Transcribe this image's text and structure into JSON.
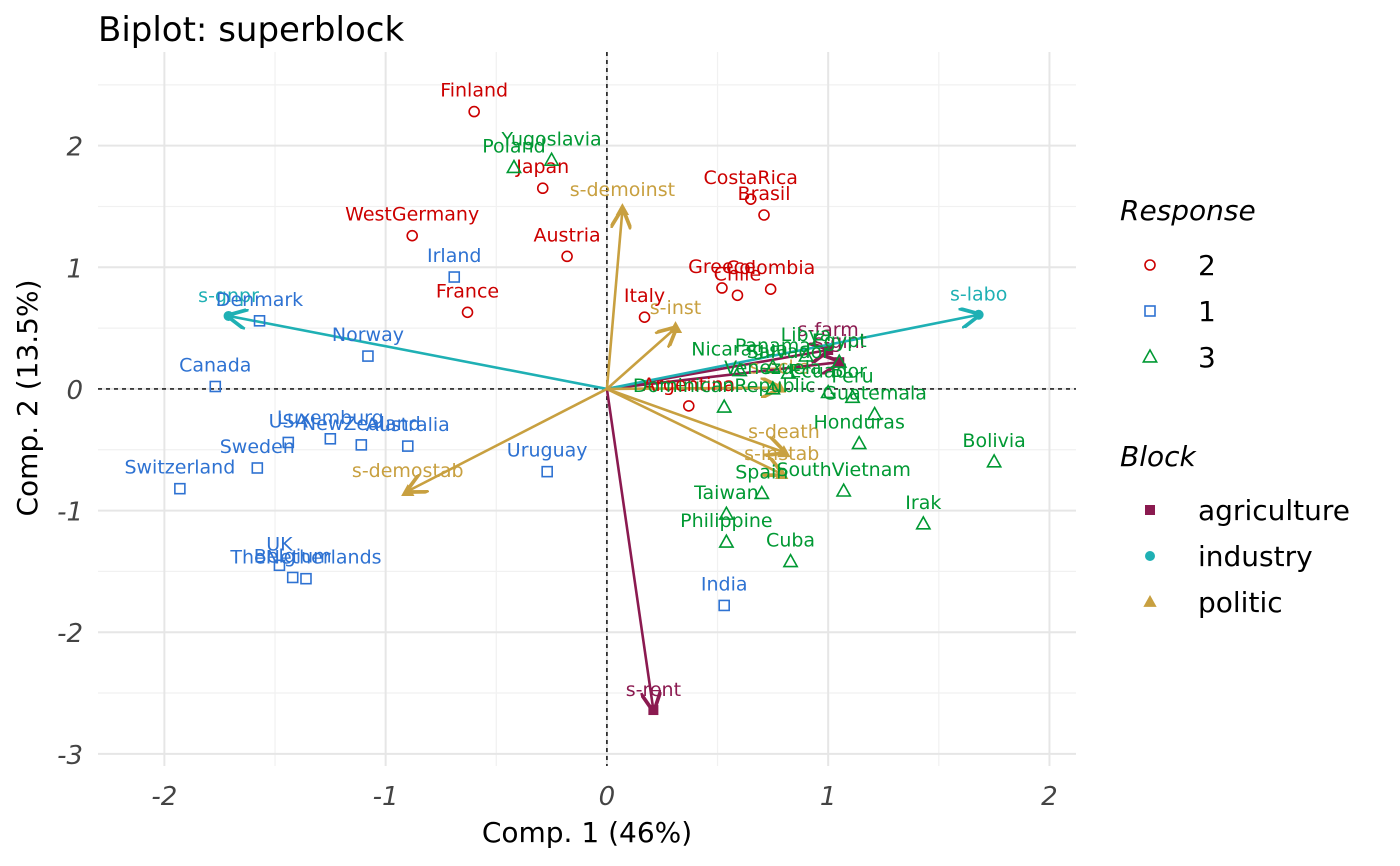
{
  "chart_data": {
    "type": "scatter",
    "title": "Biplot: superblock",
    "xlabel": "Comp. 1 (46%)",
    "ylabel": "Comp. 2 (13.5%)",
    "xlim": [
      -2.3,
      2.12
    ],
    "ylim": [
      -3.1,
      2.77
    ],
    "xticks": [
      -2,
      -1,
      0,
      1,
      2
    ],
    "xtick_labels": [
      "-2",
      "-1",
      "0",
      "1",
      "2"
    ],
    "yticks": [
      -3,
      -2,
      -1,
      0,
      1,
      2
    ],
    "ytick_labels": [
      "-3",
      "-2",
      "-1",
      "0",
      "1",
      "2"
    ],
    "grid": true,
    "reference_lines": {
      "x": 0,
      "y": 0,
      "style": "dashed"
    },
    "colors": {
      "response_2": "#cc0000",
      "response_1": "#2e72d2",
      "response_3": "#009933",
      "agriculture": "#8b1a50",
      "industry": "#1fb0b4",
      "politic": "#c8a040"
    },
    "legend_response": {
      "title": "Response",
      "items": [
        {
          "label": "2",
          "shape": "circle",
          "color": "#cc0000"
        },
        {
          "label": "1",
          "shape": "square",
          "color": "#2e72d2"
        },
        {
          "label": "3",
          "shape": "triangle",
          "color": "#009933"
        }
      ]
    },
    "legend_block": {
      "title": "Block",
      "items": [
        {
          "label": "agriculture",
          "shape": "filled-square",
          "color": "#8b1a50"
        },
        {
          "label": "industry",
          "shape": "filled-circle",
          "color": "#1fb0b4"
        },
        {
          "label": "politic",
          "shape": "filled-triangle",
          "color": "#c8a040"
        }
      ]
    },
    "legend_placement": "right",
    "points": [
      {
        "label": "Finland",
        "x": -0.6,
        "y": 2.28,
        "group": "2"
      },
      {
        "label": "Japan",
        "x": -0.29,
        "y": 1.65,
        "group": "2"
      },
      {
        "label": "WestGermany",
        "x": -0.88,
        "y": 1.26,
        "group": "2"
      },
      {
        "label": "Austria",
        "x": -0.18,
        "y": 1.09,
        "group": "2"
      },
      {
        "label": "France",
        "x": -0.63,
        "y": 0.63,
        "group": "2"
      },
      {
        "label": "Italy",
        "x": 0.17,
        "y": 0.59,
        "group": "2"
      },
      {
        "label": "CostaRica",
        "x": 0.65,
        "y": 1.56,
        "group": "2"
      },
      {
        "label": "Brasil",
        "x": 0.71,
        "y": 1.43,
        "group": "2"
      },
      {
        "label": "Greece",
        "x": 0.52,
        "y": 0.83,
        "group": "2"
      },
      {
        "label": "Colombia",
        "x": 0.74,
        "y": 0.82,
        "group": "2"
      },
      {
        "label": "Chile",
        "x": 0.59,
        "y": 0.77,
        "group": "2"
      },
      {
        "label": "Argentina",
        "x": 0.37,
        "y": -0.14,
        "group": "2"
      },
      {
        "label": "Irland",
        "x": -0.69,
        "y": 0.92,
        "group": "1"
      },
      {
        "label": "Denmark",
        "x": -1.57,
        "y": 0.56,
        "group": "1"
      },
      {
        "label": "Norway",
        "x": -1.08,
        "y": 0.27,
        "group": "1"
      },
      {
        "label": "Canada",
        "x": -1.77,
        "y": 0.02,
        "group": "1"
      },
      {
        "label": "Luxemburg",
        "x": -1.25,
        "y": -0.41,
        "group": "1"
      },
      {
        "label": "USA",
        "x": -1.44,
        "y": -0.44,
        "group": "1"
      },
      {
        "label": "NewZealand",
        "x": -1.11,
        "y": -0.46,
        "group": "1"
      },
      {
        "label": "Australia",
        "x": -0.9,
        "y": -0.47,
        "group": "1"
      },
      {
        "label": "Sweden",
        "x": -1.58,
        "y": -0.65,
        "group": "1"
      },
      {
        "label": "Switzerland",
        "x": -1.93,
        "y": -0.82,
        "group": "1"
      },
      {
        "label": "Uruguay",
        "x": -0.27,
        "y": -0.68,
        "group": "1"
      },
      {
        "label": "UK",
        "x": -1.48,
        "y": -1.45,
        "group": "1"
      },
      {
        "label": "Belgium",
        "x": -1.42,
        "y": -1.55,
        "group": "1"
      },
      {
        "label": "TheNetherlands",
        "x": -1.36,
        "y": -1.56,
        "group": "1"
      },
      {
        "label": "India",
        "x": 0.53,
        "y": -1.78,
        "group": "1"
      },
      {
        "label": "Yugoslavia",
        "x": -0.25,
        "y": 1.88,
        "group": "3"
      },
      {
        "label": "Poland",
        "x": -0.42,
        "y": 1.82,
        "group": "3"
      },
      {
        "label": "Nicaragua",
        "x": 0.6,
        "y": 0.15,
        "group": "3"
      },
      {
        "label": "Panama",
        "x": 0.75,
        "y": 0.18,
        "group": "3"
      },
      {
        "label": "Salvador",
        "x": 0.82,
        "y": 0.13,
        "group": "3"
      },
      {
        "label": "Libya",
        "x": 0.9,
        "y": 0.27,
        "group": "3"
      },
      {
        "label": "Egypt",
        "x": 1.05,
        "y": 0.22,
        "group": "3"
      },
      {
        "label": "Venezuela",
        "x": 0.75,
        "y": 0.0,
        "group": "3"
      },
      {
        "label": "Ecuador",
        "x": 1.0,
        "y": -0.03,
        "group": "3"
      },
      {
        "label": "Peru",
        "x": 1.11,
        "y": -0.07,
        "group": "3"
      },
      {
        "label": "Guatemala",
        "x": 1.21,
        "y": -0.21,
        "group": "3"
      },
      {
        "label": "Honduras",
        "x": 1.14,
        "y": -0.45,
        "group": "3"
      },
      {
        "label": "DominicanRepublic",
        "x": 0.53,
        "y": -0.15,
        "group": "3"
      },
      {
        "label": "Bolivia",
        "x": 1.75,
        "y": -0.6,
        "group": "3"
      },
      {
        "label": "SouthVietnam",
        "x": 1.07,
        "y": -0.84,
        "group": "3"
      },
      {
        "label": "Spain",
        "x": 0.7,
        "y": -0.86,
        "group": "3"
      },
      {
        "label": "Irak",
        "x": 1.43,
        "y": -1.11,
        "group": "3"
      },
      {
        "label": "Taiwan",
        "x": 0.54,
        "y": -1.03,
        "group": "3"
      },
      {
        "label": "Philippine",
        "x": 0.54,
        "y": -1.26,
        "group": "3"
      },
      {
        "label": "Cuba",
        "x": 0.83,
        "y": -1.42,
        "group": "3"
      }
    ],
    "variables": [
      {
        "label": "s-gini",
        "x": 1.05,
        "y": 0.22,
        "block": "agriculture"
      },
      {
        "label": "s-farm",
        "x": 1.0,
        "y": 0.32,
        "block": "agriculture"
      },
      {
        "label": "s-rent",
        "x": 0.21,
        "y": -2.64,
        "block": "agriculture"
      },
      {
        "label": "s-gnpr",
        "x": -1.71,
        "y": 0.6,
        "block": "industry"
      },
      {
        "label": "s-labo",
        "x": 1.68,
        "y": 0.61,
        "block": "industry"
      },
      {
        "label": "s-demoinst",
        "x": 0.07,
        "y": 1.47,
        "block": "politic"
      },
      {
        "label": "s-inst",
        "x": 0.31,
        "y": 0.5,
        "block": "politic"
      },
      {
        "label": "s-ecks",
        "x": 0.78,
        "y": 0.01,
        "block": "politic"
      },
      {
        "label": "s-death",
        "x": 0.8,
        "y": -0.52,
        "block": "politic"
      },
      {
        "label": "s-demostab",
        "x": -0.9,
        "y": -0.84,
        "block": "politic"
      },
      {
        "label": "s-instab",
        "x": 0.79,
        "y": -0.7,
        "block": "politic"
      }
    ]
  }
}
